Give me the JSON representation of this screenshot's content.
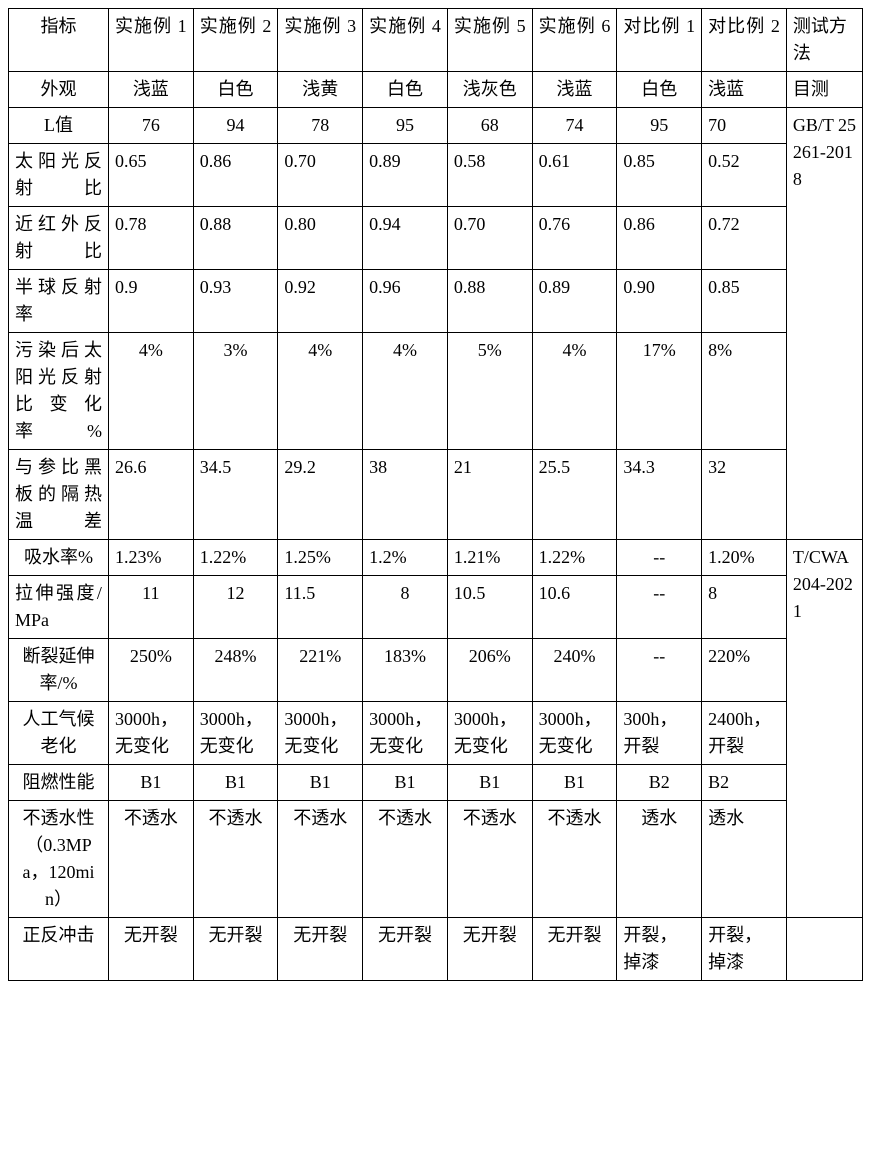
{
  "headers": {
    "indicator": "指标",
    "ex1": "实施例 1",
    "ex2": "实施例 2",
    "ex3": "实施例 3",
    "ex4": "实施例 4",
    "ex5": "实施例 5",
    "ex6": "实施例 6",
    "cmp1": "对比例 1",
    "cmp2": "对比例 2",
    "method": "测试方法"
  },
  "rows": {
    "appearance": {
      "label": "外观",
      "v": [
        "浅蓝",
        "白色",
        "浅黄",
        "白色",
        "浅灰色",
        "浅蓝",
        "白色",
        "浅蓝"
      ],
      "method": "目测"
    },
    "l_value": {
      "label": "L值",
      "v": [
        "76",
        "94",
        "78",
        "95",
        "68",
        "74",
        "95",
        "70"
      ]
    },
    "solar": {
      "label": "太阳光反射比",
      "v": [
        "0.65",
        "0.86",
        "0.70",
        "0.89",
        "0.58",
        "0.61",
        "0.85",
        "0.52"
      ]
    },
    "nir": {
      "label": "近红外反射比",
      "v": [
        "0.78",
        "0.88",
        "0.80",
        "0.94",
        "0.70",
        "0.76",
        "0.86",
        "0.72"
      ]
    },
    "hemi": {
      "label": "半球反射率",
      "v": [
        "0.9",
        "0.93",
        "0.92",
        "0.96",
        "0.88",
        "0.89",
        "0.90",
        "0.85"
      ]
    },
    "pollution": {
      "label": "污染后太阳光反射比变化率%",
      "v": [
        "4%",
        "3%",
        "4%",
        "4%",
        "5%",
        "4%",
        "17%",
        "8%"
      ]
    },
    "tempdiff": {
      "label": "与参比黑板的隔热温差",
      "v": [
        "26.6",
        "34.5",
        "29.2",
        "38",
        "21",
        "25.5",
        "34.3",
        "32"
      ]
    },
    "method1": "GB/T 25261-2018",
    "water": {
      "label": "吸水率%",
      "v": [
        "1.23%",
        "1.22%",
        "1.25%",
        "1.2%",
        "1.21%",
        "1.22%",
        "--",
        "1.20%"
      ]
    },
    "tensile": {
      "label": "拉伸强度/MPa",
      "v": [
        "11",
        "12",
        "11.5",
        "8",
        "10.5",
        "10.6",
        "--",
        "8"
      ]
    },
    "elong": {
      "label": "断裂延伸率/%",
      "v": [
        "250%",
        "248%",
        "221%",
        "183%",
        "206%",
        "240%",
        "--",
        "220%"
      ]
    },
    "weather": {
      "label": "人工气候老化",
      "v": [
        "3000h，无变化",
        "3000h，无变化",
        "3000h，无变化",
        "3000h，无变化",
        "3000h，无变化",
        "3000h，无变化",
        "300h，开裂",
        "2400h，开裂"
      ]
    },
    "flame": {
      "label": "阻燃性能",
      "v": [
        "B1",
        "B1",
        "B1",
        "B1",
        "B1",
        "B1",
        "B2",
        "B2"
      ]
    },
    "imperm": {
      "label": "不透水性（0.3MPa，120min）",
      "v": [
        "不透水",
        "不透水",
        "不透水",
        "不透水",
        "不透水",
        "不透水",
        "透水",
        "透水"
      ]
    },
    "method2": "T/CWA 204-2021",
    "impact": {
      "label": "正反冲击",
      "v": [
        "无开裂",
        "无开裂",
        "无开裂",
        "无开裂",
        "无开裂",
        "无开裂",
        "开裂，掉漆",
        "开裂，掉漆"
      ]
    }
  },
  "colors": {
    "border": "#000000",
    "bg": "#ffffff",
    "text": "#000000"
  },
  "font_size_pt": 14
}
